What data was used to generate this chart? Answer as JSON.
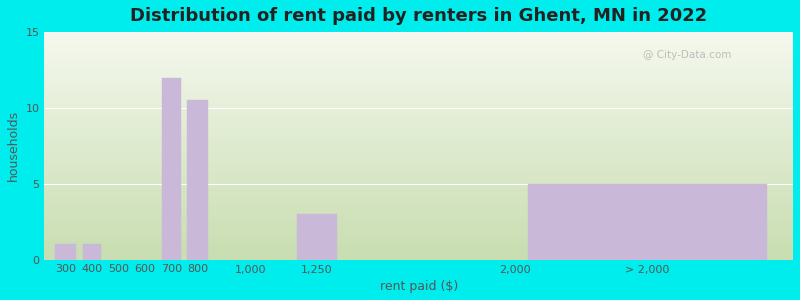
{
  "title": "Distribution of rent paid by renters in Ghent, MN in 2022",
  "xlabel": "rent paid ($)",
  "ylabel": "households",
  "bar_color": "#c9b8d8",
  "background_outer": "#00eded",
  "ylim": [
    0,
    15
  ],
  "yticks": [
    0,
    5,
    10,
    15
  ],
  "title_fontsize": 13,
  "axis_label_fontsize": 9,
  "tick_fontsize": 8,
  "watermark": "@ City-Data.com",
  "grad_bottom": "#c8ddb0",
  "grad_top": "#f5f8ee",
  "bar_positions": [
    300,
    400,
    500,
    600,
    700,
    800,
    1000,
    1250,
    2000,
    2500
  ],
  "bar_widths": [
    80,
    70,
    70,
    70,
    70,
    80,
    150,
    150,
    200,
    900
  ],
  "values": [
    1,
    1,
    0,
    0,
    12,
    10.5,
    0,
    3,
    0,
    5
  ],
  "tick_positions": [
    300,
    400,
    500,
    600,
    700,
    800,
    1000,
    1250,
    2000,
    2500
  ],
  "tick_labels": [
    "300",
    "400",
    "500",
    "600",
    "700",
    "800",
    "1,000",
    "1,250",
    "2,000",
    "> 2,000"
  ],
  "xlim": [
    220,
    3050
  ]
}
